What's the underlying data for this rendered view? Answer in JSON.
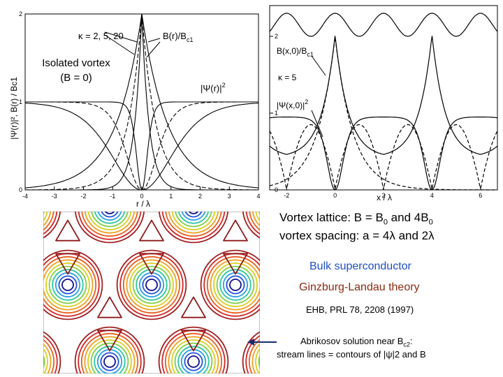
{
  "chart_data": [
    {
      "type": "line",
      "title": "",
      "xlabel": "r / λ",
      "ylabel": "|Ψ(r)|², B(r) / Bc1",
      "xlim": [
        -4,
        4
      ],
      "ylim": [
        0,
        2
      ],
      "x_ticks": [
        "-4",
        "-3",
        "-2",
        "-1",
        "0",
        "1",
        "2",
        "3",
        "4"
      ],
      "y_ticks": [
        "0",
        "1",
        "2"
      ],
      "kappa_values": [
        2,
        5,
        20
      ],
      "series_B": [
        {
          "kappa": 2,
          "peak": 2.0,
          "width": 1.0
        },
        {
          "kappa": 5,
          "peak": 2.0,
          "width": 1.0
        },
        {
          "kappa": 20,
          "peak": 2.0,
          "width": 1.0
        }
      ],
      "series_psi": [
        {
          "kappa": 2,
          "core": 0.55
        },
        {
          "kappa": 5,
          "core": 0.22
        },
        {
          "kappa": 20,
          "core": 0.06
        }
      ],
      "annotations": {
        "kappa": "κ = 2, 5, 20",
        "B": "B(r)/B",
        "B_sub": "c1",
        "psi": "|Ψ(r)|",
        "psi_sup": "2"
      },
      "legend": "none"
    },
    {
      "type": "line",
      "title": "",
      "xlabel": "x / λ",
      "ylabel": "",
      "xlim": [
        -2.7,
        6.7
      ],
      "ylim": [
        0,
        2.4
      ],
      "x_ticks": [
        "-2",
        "0",
        "2",
        "4",
        "6"
      ],
      "y_ticks": [
        "0",
        "1",
        "2"
      ],
      "kappa": 5,
      "annotations": {
        "B": "B(x,0)/B",
        "B_sub": "c1",
        "kappa": "κ = 5",
        "psi": "|Ψ(x,0)|",
        "psi_sup": "2"
      },
      "legend": "none"
    },
    {
      "type": "heatmap",
      "title": "",
      "description_source": "contours of |ψ|² — Abrikosov lattice",
      "color_levels": [
        "#101090",
        "#2050e0",
        "#2aa0e8",
        "#30c8a0",
        "#80d040",
        "#d8d020",
        "#f0a020",
        "#e86020",
        "#d02828",
        "#a02020"
      ]
    }
  ],
  "texts": {
    "isolated_line1": "Isolated vortex",
    "isolated_line2": "(B = 0)",
    "lattice_prefix": "Vortex lattice:   B = B",
    "lattice_sub": "0",
    "lattice_mid": " and 4B",
    "lattice_sub2": "0",
    "spacing": "vortex spacing: a = 4λ and 2λ",
    "bulk": "Bulk superconductor",
    "gl": "Ginzburg-Landau theory",
    "ref": "EHB,  PRL 78, 2208 (1997)",
    "abrikosov": "Abrikosov solution near B",
    "abrikosov_sub": "c2",
    "abrikosov_end": ":",
    "stream": "stream lines = contours of |ψ|2 and B"
  },
  "colors": {
    "blue_text": "#1f4fc4",
    "brown_text": "#8b2a14",
    "arrow": "#1c2a6e"
  }
}
